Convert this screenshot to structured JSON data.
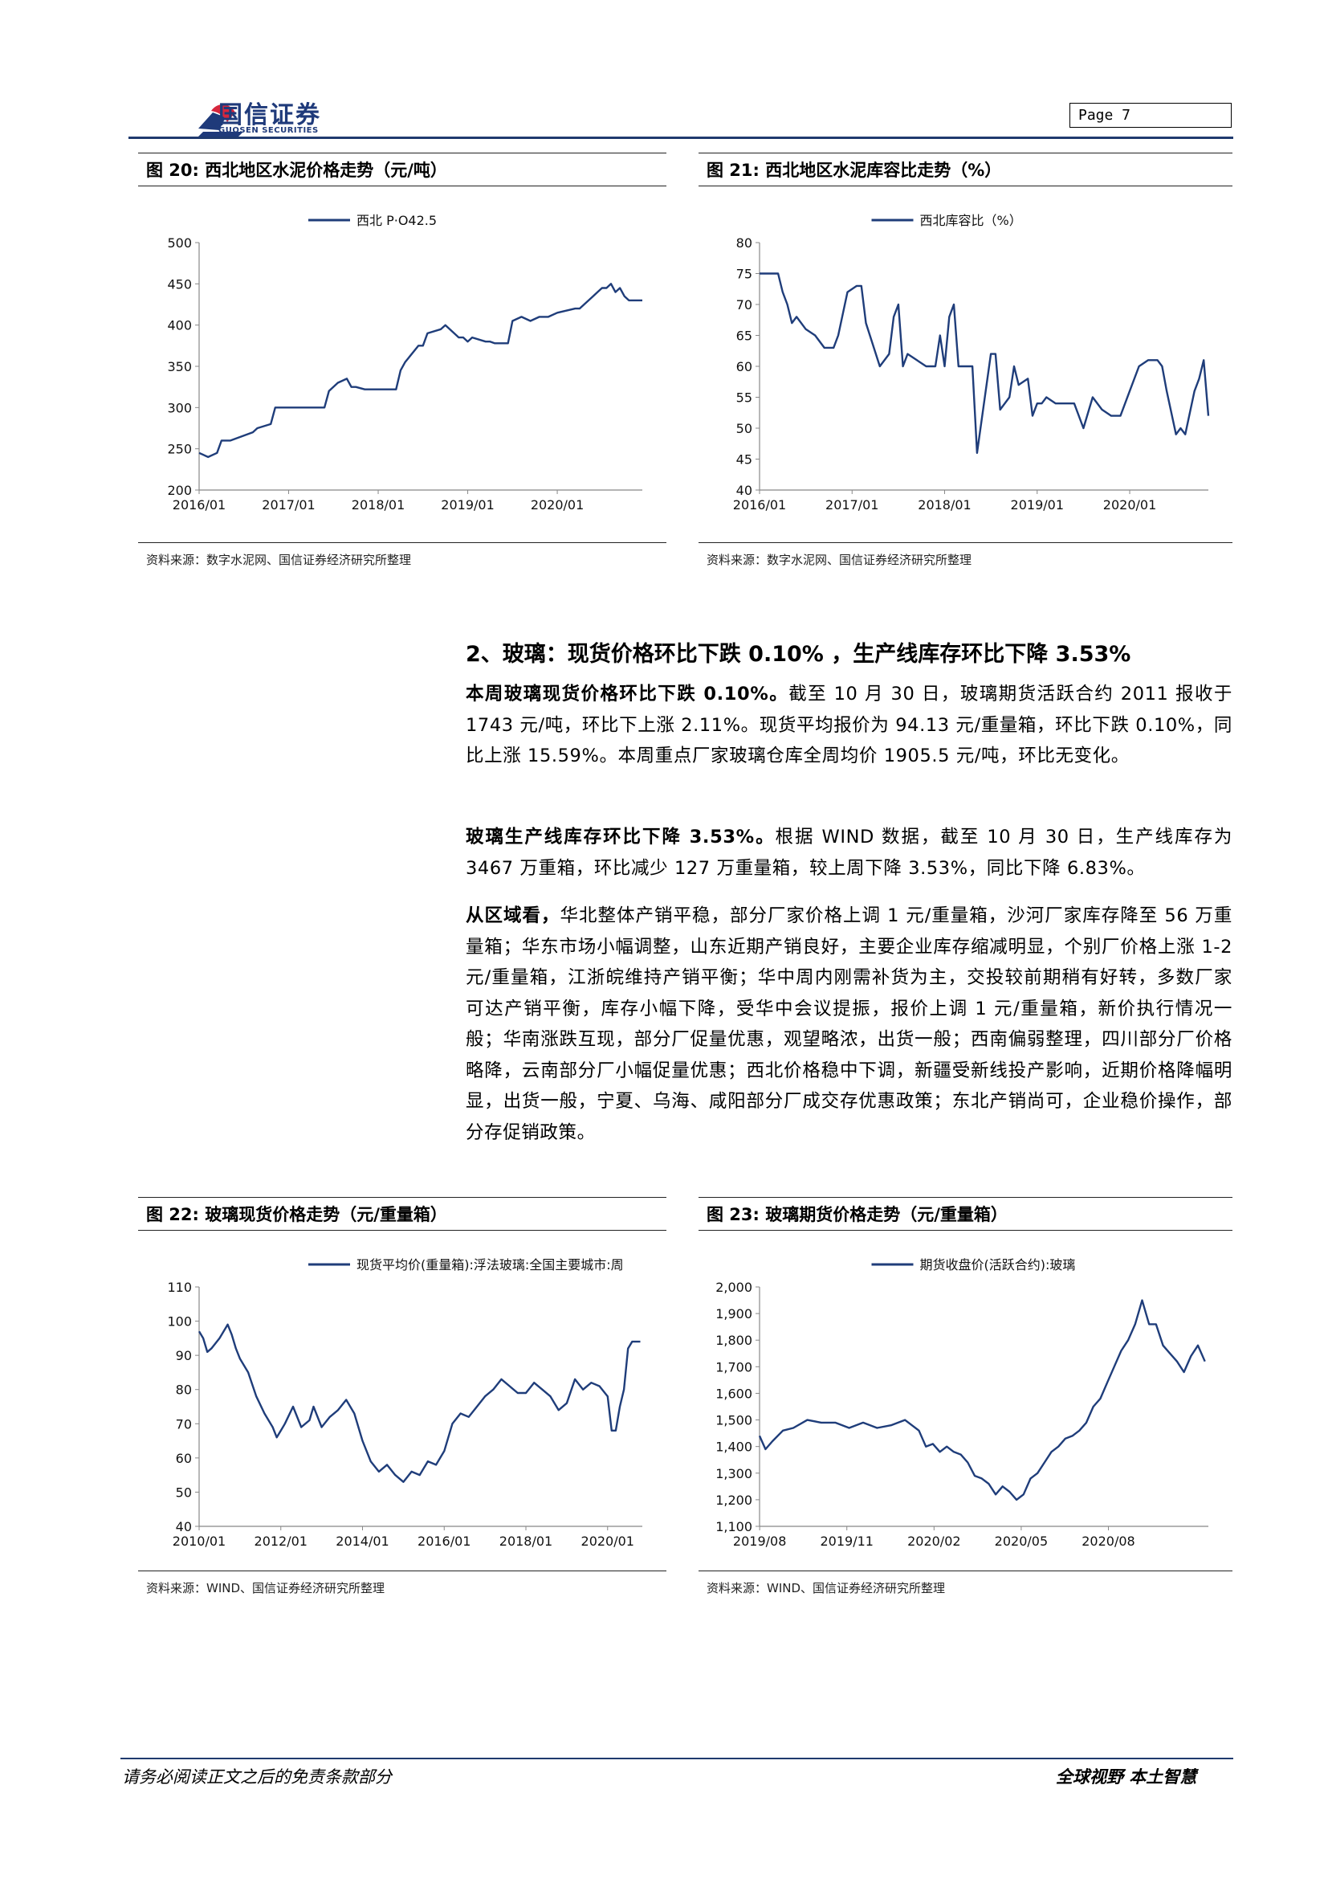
{
  "header": {
    "logo_cn": "国信证券",
    "logo_en": "GUOSEN SECURITIES",
    "page_label": "Page  7"
  },
  "figures": [
    {
      "caption": "图 20:  西北地区水泥价格走势（元/吨）",
      "source": "资料来源：数字水泥网、国信证券经济研究所整理"
    },
    {
      "caption": "图 21:  西北地区水泥库容比走势（%）",
      "source": "资料来源：数字水泥网、国信证券经济研究所整理"
    },
    {
      "caption": "图 22:  玻璃现货价格走势（元/重量箱）",
      "source": "资料来源：WIND、国信证券经济研究所整理"
    },
    {
      "caption": "图 23:  玻璃期货价格走势（元/重量箱）",
      "source": "资料来源：WIND、国信证券经济研究所整理"
    }
  ],
  "section": {
    "title": "2、玻璃：现货价格环比下跌 0.10% ，生产线库存环比下降 3.53%",
    "p1_bold": "本周玻璃现货价格环比下跌 0.10%。",
    "p1_text": "截至 10 月 30 日，玻璃期货活跃合约 2011 报收于 1743 元/吨，环比下上涨 2.11%。现货平均报价为 94.13 元/重量箱，环比下跌 0.10%，同比上涨 15.59%。本周重点厂家玻璃仓库全周均价 1905.5 元/吨，环比无变化。",
    "p2_bold": "玻璃生产线库存环比下降 3.53%。",
    "p2_text": "根据 WIND 数据，截至 10 月 30 日，生产线库存为 3467 万重箱，环比减少 127 万重量箱，较上周下降 3.53%，同比下降 6.83%。",
    "p3_bold": "从区域看，",
    "p3_text": "华北整体产销平稳，部分厂家价格上调 1 元/重量箱，沙河厂家库存降至 56 万重量箱；华东市场小幅调整，山东近期产销良好，主要企业库存缩减明显，个别厂价格上涨 1-2 元/重量箱，江浙皖维持产销平衡；华中周内刚需补货为主，交投较前期稍有好转，多数厂家可达产销平衡，库存小幅下降，受华中会议提振，报价上调 1 元/重量箱，新价执行情况一般；华南涨跌互现，部分厂促量优惠，观望略浓，出货一般；西南偏弱整理，四川部分厂价格略降，云南部分厂小幅促量优惠；西北价格稳中下调，新疆受新线投产影响，近期价格降幅明显，出货一般，宁夏、乌海、咸阳部分厂成交存优惠政策；东北产销尚可，企业稳价操作，部分存促销政策。"
  },
  "footer": {
    "left": "请务必阅读正文之后的免责条款部分",
    "right": "全球视野  本土智慧"
  },
  "colors": {
    "line": "#1f3d7a",
    "brand_red": "#d7263d",
    "brand_blue": "#1f3a7a"
  },
  "chart_data": [
    {
      "type": "line",
      "legend": "西北 P·O42.5",
      "x_ticks": [
        "2016/01",
        "2017/01",
        "2018/01",
        "2019/01",
        "2020/01"
      ],
      "x_range": [
        2016.0,
        2020.95
      ],
      "ylim": [
        200,
        500
      ],
      "y_ticks": [
        200,
        250,
        300,
        350,
        400,
        450,
        500
      ],
      "series": [
        {
          "name": "西北 P·O42.5",
          "x": [
            2016.0,
            2016.1,
            2016.2,
            2016.25,
            2016.35,
            2016.6,
            2016.65,
            2016.8,
            2016.85,
            2017.0,
            2017.4,
            2017.45,
            2017.55,
            2017.65,
            2017.7,
            2017.75,
            2017.85,
            2018.0,
            2018.2,
            2018.25,
            2018.3,
            2018.45,
            2018.5,
            2018.55,
            2018.7,
            2018.75,
            2018.9,
            2018.95,
            2019.0,
            2019.05,
            2019.2,
            2019.25,
            2019.3,
            2019.45,
            2019.5,
            2019.6,
            2019.7,
            2019.8,
            2019.9,
            2020.0,
            2020.2,
            2020.25,
            2020.3,
            2020.4,
            2020.45,
            2020.5,
            2020.55,
            2020.6,
            2020.65,
            2020.7,
            2020.75,
            2020.8,
            2020.95
          ],
          "values": [
            245,
            240,
            245,
            260,
            260,
            270,
            275,
            280,
            300,
            300,
            300,
            320,
            330,
            335,
            325,
            325,
            322,
            322,
            322,
            345,
            355,
            375,
            375,
            390,
            395,
            400,
            385,
            385,
            380,
            385,
            380,
            380,
            378,
            378,
            405,
            410,
            405,
            410,
            410,
            415,
            420,
            420,
            425,
            435,
            440,
            445,
            445,
            450,
            440,
            445,
            435,
            430,
            430
          ]
        }
      ]
    },
    {
      "type": "line",
      "legend": "西北库容比（%）",
      "x_ticks": [
        "2016/01",
        "2017/01",
        "2018/01",
        "2019/01",
        "2020/01"
      ],
      "x_range": [
        2016.0,
        2020.85
      ],
      "ylim": [
        40,
        80
      ],
      "y_ticks": [
        40,
        45,
        50,
        55,
        60,
        65,
        70,
        75,
        80
      ],
      "series": [
        {
          "name": "西北库容比（%）",
          "x": [
            2016.0,
            2016.2,
            2016.25,
            2016.3,
            2016.35,
            2016.4,
            2016.5,
            2016.6,
            2016.7,
            2016.8,
            2016.85,
            2016.95,
            2017.05,
            2017.1,
            2017.15,
            2017.3,
            2017.4,
            2017.45,
            2017.5,
            2017.55,
            2017.6,
            2017.7,
            2017.8,
            2017.9,
            2017.95,
            2018.0,
            2018.05,
            2018.1,
            2018.15,
            2018.2,
            2018.3,
            2018.35,
            2018.5,
            2018.55,
            2018.6,
            2018.7,
            2018.75,
            2018.8,
            2018.9,
            2018.95,
            2019.0,
            2019.05,
            2019.1,
            2019.2,
            2019.4,
            2019.5,
            2019.6,
            2019.7,
            2019.8,
            2019.9,
            2020.0,
            2020.1,
            2020.2,
            2020.3,
            2020.35,
            2020.4,
            2020.5,
            2020.55,
            2020.6,
            2020.7,
            2020.75,
            2020.8,
            2020.85
          ],
          "values": [
            75,
            75,
            72,
            70,
            67,
            68,
            66,
            65,
            63,
            63,
            65,
            72,
            73,
            73,
            67,
            60,
            62,
            68,
            70,
            60,
            62,
            61,
            60,
            60,
            65,
            60,
            68,
            70,
            60,
            60,
            60,
            46,
            62,
            62,
            53,
            55,
            60,
            57,
            58,
            52,
            54,
            54,
            55,
            54,
            54,
            50,
            55,
            53,
            52,
            52,
            56,
            60,
            61,
            61,
            60,
            56,
            49,
            50,
            49,
            56,
            58,
            61,
            52
          ]
        }
      ]
    },
    {
      "type": "line",
      "legend": "现货平均价(重量箱):浮法玻璃:全国主要城市:周",
      "x_ticks": [
        "2010/01",
        "2012/01",
        "2014/01",
        "2016/01",
        "2018/01",
        "2020/01"
      ],
      "x_range": [
        2010.0,
        2020.85
      ],
      "ylim": [
        40,
        110
      ],
      "y_ticks": [
        40,
        50,
        60,
        70,
        80,
        90,
        100,
        110
      ],
      "series": [
        {
          "name": "现货平均价(重量箱):浮法玻璃:全国主要城市:周",
          "x": [
            2010.0,
            2010.1,
            2010.2,
            2010.3,
            2010.5,
            2010.7,
            2010.8,
            2010.9,
            2011.0,
            2011.2,
            2011.4,
            2011.6,
            2011.8,
            2011.9,
            2012.0,
            2012.1,
            2012.3,
            2012.5,
            2012.7,
            2012.8,
            2013.0,
            2013.2,
            2013.4,
            2013.6,
            2013.8,
            2014.0,
            2014.2,
            2014.4,
            2014.6,
            2014.8,
            2015.0,
            2015.2,
            2015.4,
            2015.6,
            2015.8,
            2016.0,
            2016.2,
            2016.4,
            2016.6,
            2016.8,
            2017.0,
            2017.2,
            2017.4,
            2017.6,
            2017.8,
            2018.0,
            2018.2,
            2018.4,
            2018.6,
            2018.8,
            2019.0,
            2019.2,
            2019.4,
            2019.6,
            2019.8,
            2020.0,
            2020.1,
            2020.2,
            2020.3,
            2020.4,
            2020.5,
            2020.6,
            2020.7,
            2020.8
          ],
          "values": [
            97,
            95,
            91,
            92,
            95,
            99,
            96,
            92,
            89,
            85,
            78,
            73,
            69,
            66,
            68,
            70,
            75,
            69,
            71,
            75,
            69,
            72,
            74,
            77,
            73,
            65,
            59,
            56,
            58,
            55,
            53,
            56,
            55,
            59,
            58,
            62,
            70,
            73,
            72,
            75,
            78,
            80,
            83,
            81,
            79,
            79,
            82,
            80,
            78,
            74,
            76,
            83,
            80,
            82,
            81,
            78,
            68,
            68,
            75,
            80,
            92,
            94,
            94,
            94
          ]
        }
      ]
    },
    {
      "type": "line",
      "legend": "期货收盘价(活跃合约):玻璃",
      "x_ticks": [
        "2019/08",
        "2019/11",
        "2020/02",
        "2020/05",
        "2020/08"
      ],
      "x_range": [
        2019.583,
        2020.87
      ],
      "ylim": [
        1100,
        2000
      ],
      "y_ticks": [
        1100,
        1200,
        1300,
        1400,
        1500,
        1600,
        1700,
        1800,
        1900,
        2000
      ],
      "y_tick_labels": [
        "1,100",
        "1,200",
        "1,300",
        "1,400",
        "1,500",
        "1,600",
        "1,700",
        "1,800",
        "1,900",
        "2,000"
      ],
      "series": [
        {
          "name": "期货收盘价(活跃合约):玻璃",
          "x": [
            2019.583,
            2019.6,
            2019.62,
            2019.65,
            2019.68,
            2019.72,
            2019.76,
            2019.8,
            2019.84,
            2019.88,
            2019.92,
            2019.96,
            2020.0,
            2020.02,
            2020.04,
            2020.06,
            2020.08,
            2020.1,
            2020.12,
            2020.14,
            2020.16,
            2020.18,
            2020.2,
            2020.22,
            2020.24,
            2020.26,
            2020.28,
            2020.3,
            2020.32,
            2020.34,
            2020.36,
            2020.38,
            2020.4,
            2020.42,
            2020.44,
            2020.46,
            2020.48,
            2020.5,
            2020.52,
            2020.54,
            2020.56,
            2020.58,
            2020.6,
            2020.62,
            2020.64,
            2020.66,
            2020.68,
            2020.7,
            2020.72,
            2020.74,
            2020.76,
            2020.78,
            2020.8,
            2020.82,
            2020.84,
            2020.86
          ],
          "values": [
            1440,
            1390,
            1420,
            1460,
            1470,
            1500,
            1490,
            1490,
            1470,
            1490,
            1470,
            1480,
            1500,
            1480,
            1460,
            1400,
            1410,
            1380,
            1400,
            1380,
            1370,
            1340,
            1290,
            1280,
            1260,
            1220,
            1250,
            1230,
            1200,
            1220,
            1280,
            1300,
            1340,
            1380,
            1400,
            1430,
            1440,
            1460,
            1490,
            1550,
            1580,
            1640,
            1700,
            1760,
            1800,
            1860,
            1950,
            1860,
            1860,
            1780,
            1750,
            1720,
            1680,
            1740,
            1780,
            1720
          ]
        }
      ]
    }
  ]
}
